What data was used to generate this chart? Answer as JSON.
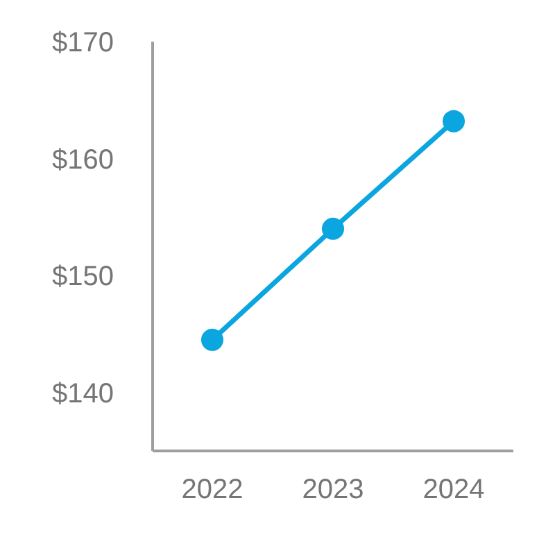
{
  "chart_data": {
    "type": "line",
    "categories": [
      "2022",
      "2023",
      "2024"
    ],
    "series": [
      {
        "color": "#0ba5e0",
        "values": [
          144.5,
          154,
          163.2
        ]
      }
    ],
    "ylim": [
      135,
      170
    ],
    "yticks": [
      {
        "value": 140,
        "label": "$140"
      },
      {
        "value": 150,
        "label": "$150"
      },
      {
        "value": 160,
        "label": "$160"
      },
      {
        "value": 170,
        "label": "$170"
      }
    ],
    "grid": false,
    "legend": false,
    "marker": "circle",
    "line_style": "solid"
  }
}
